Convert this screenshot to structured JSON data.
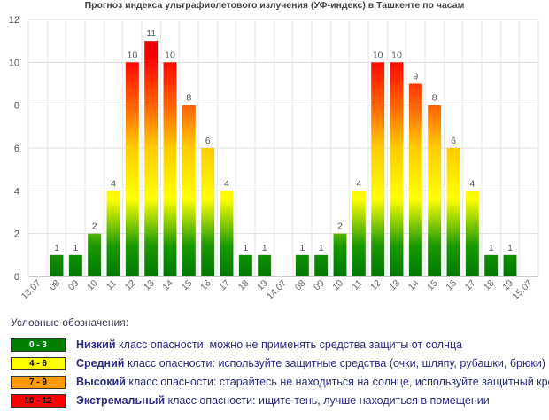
{
  "title": "Прогноз индекса ультрафиолетового излучения (УФ-индекс) в Ташкенте по часам",
  "chart_data": {
    "type": "bar",
    "ylim": [
      0,
      12
    ],
    "yticks": [
      0,
      2,
      4,
      6,
      8,
      10,
      12
    ],
    "grid": true,
    "categories": [
      "13.07",
      "08",
      "09",
      "10",
      "11",
      "12",
      "13",
      "14",
      "15",
      "16",
      "17",
      "18",
      "19",
      "14.07",
      "08",
      "09",
      "10",
      "11",
      "12",
      "13",
      "14",
      "15",
      "16",
      "17",
      "18",
      "19",
      "15.07"
    ],
    "values": [
      0,
      1,
      1,
      2,
      4,
      10,
      11,
      10,
      8,
      6,
      4,
      1,
      1,
      0,
      1,
      1,
      2,
      4,
      10,
      10,
      9,
      8,
      6,
      4,
      1,
      1,
      0
    ],
    "data_labels": [
      "",
      "1",
      "1",
      "2",
      "4",
      "10",
      "11",
      "10",
      "8",
      "6",
      "4",
      "1",
      "1",
      "",
      "1",
      "1",
      "2",
      "4",
      "10",
      "10",
      "9",
      "8",
      "6",
      "4",
      "1",
      "1",
      ""
    ],
    "bar_gradient": {
      "low": "#008000",
      "mid": "#ffff00",
      "high": "#ff8c00",
      "top": "#ff0000",
      "extreme": "#cc0000"
    }
  },
  "legend": {
    "title": "Условные обозначения:",
    "items": [
      {
        "range": "0 - 3",
        "name": "Низкий",
        "text": " класс опасности: можно не применять средства защиты от солнца",
        "color": "#008000",
        "textcolor": "#ffffff"
      },
      {
        "range": "4 - 6",
        "name": "Средний",
        "text": " класс опасности: используйте защитные средства (очки, шляпу, рубашки, брюки)",
        "color": "#ffff00",
        "textcolor": "#000000"
      },
      {
        "range": "7 - 9",
        "name": "Высокий",
        "text": " класс опасности: старайтесь не находиться на солнце, используйте защитный крем",
        "color": "#ff9900",
        "textcolor": "#000000"
      },
      {
        "range": "10 - 12",
        "name": "Экстремальный",
        "text": " класс опасности: ищите тень, лучше находиться в помещении",
        "color": "#ff0000",
        "textcolor": "#000000"
      }
    ]
  }
}
